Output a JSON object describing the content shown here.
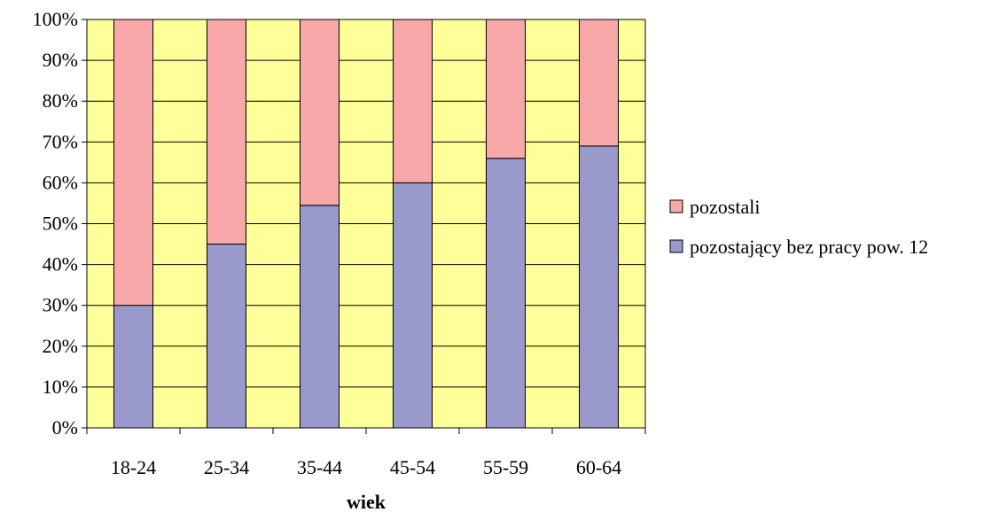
{
  "chart_data": {
    "type": "bar",
    "stacked": true,
    "categories": [
      "18-24",
      "25-34",
      "35-44",
      "45-54",
      "55-59",
      "60-64"
    ],
    "series": [
      {
        "name": "pozostający bez pracy pow. 12",
        "values": [
          30,
          45,
          54.5,
          60,
          66,
          69
        ],
        "color": "#9999cc"
      },
      {
        "name": "pozostali",
        "values": [
          70,
          55,
          45.5,
          40,
          34,
          31
        ],
        "color": "#f8a8a8"
      }
    ],
    "xlabel": "wiek",
    "ylabel": "",
    "ylim": [
      0,
      100
    ],
    "yticks": [
      "0%",
      "10%",
      "20%",
      "30%",
      "40%",
      "50%",
      "60%",
      "70%",
      "80%",
      "90%",
      "100%"
    ],
    "grid": true,
    "legend_position": "right",
    "legend_order": [
      "pozostali",
      "pozostający bez pracy pow. 12"
    ],
    "plot_background": "#ffff99"
  }
}
